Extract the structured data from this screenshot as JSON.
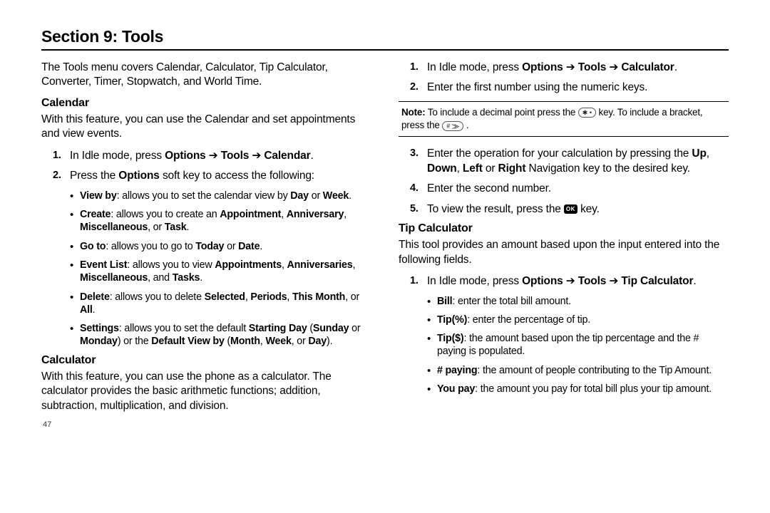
{
  "section_title": "Section 9: Tools",
  "page_number": "47",
  "left": {
    "intro": "The Tools menu covers Calendar, Calculator, Tip Calculator, Converter, Timer, Stopwatch, and World Time.",
    "calendar": {
      "heading": "Calendar",
      "desc": "With this feature, you can use the Calendar and set appointments and view events.",
      "step1_pre": "In Idle mode, press ",
      "step1_b1": "Options",
      "step1_arrow": " ➔ ",
      "step1_b2": "Tools",
      "step1_b3": "Calendar",
      "step1_post": ".",
      "step2_pre": "Press the ",
      "step2_b": "Options",
      "step2_post": " soft key to access the following:",
      "bullets": {
        "b1_label": "View by",
        "b1_mid": ": allows you to set the calendar view by ",
        "b1_bold1": "Day",
        "b1_or": " or ",
        "b1_bold2": "Week",
        "b2_label": "Create",
        "b2_mid": ": allows you to create an ",
        "b2_bold1": "Appointment",
        "b2_c1": ", ",
        "b2_bold2": "Anniversary",
        "b2_c2": ", ",
        "b2_bold3": "Miscellaneous",
        "b2_or": ", or ",
        "b2_bold4": "Task",
        "b3_label": "Go to",
        "b3_mid": ": allows you to go to ",
        "b3_bold1": "Today",
        "b3_or": " or ",
        "b3_bold2": "Date",
        "b4_label": "Event List",
        "b4_mid": ": allows you to view ",
        "b4_bold1": "Appointments",
        "b4_c1": ", ",
        "b4_bold2": "Anniversaries",
        "b4_c2": ", ",
        "b4_bold3": "Miscellaneous",
        "b4_and": ", and ",
        "b4_bold4": "Tasks",
        "b5_label": "Delete",
        "b5_mid": ": allows you to delete ",
        "b5_bold1": "Selected",
        "b5_c1": ", ",
        "b5_bold2": "Periods",
        "b5_c2": ", ",
        "b5_bold3": "This Month",
        "b5_or": ", or ",
        "b5_bold4": "All",
        "b6_label": "Settings",
        "b6_mid": ": allows you to set the default ",
        "b6_bold1": "Starting Day",
        "b6_p1": " (",
        "b6_bold2": "Sunday",
        "b6_or1": " or ",
        "b6_bold3": "Monday",
        "b6_p2": ") or the ",
        "b6_bold4": "Default View by",
        "b6_p3": " (",
        "b6_bold5": "Month",
        "b6_c1": ", ",
        "b6_bold6": "Week",
        "b6_or2": ", or ",
        "b6_bold7": "Day",
        "b6_p4": ")."
      }
    },
    "calculator": {
      "heading": "Calculator",
      "desc": "With this feature, you can use the phone as a calculator. The calculator provides the basic arithmetic functions; addition, subtraction, multiplication, and division."
    }
  },
  "right": {
    "step1_pre": "In Idle mode, press ",
    "step1_b1": "Options",
    "step1_arrow": " ➔ ",
    "step1_b2": "Tools",
    "step1_b3": "Calculator",
    "step1_post": ".",
    "step2": "Enter the first number using the numeric keys.",
    "note_label": "Note:",
    "note_t1": " To include a decimal point press the ",
    "note_icon1": "✱ •",
    "note_t2": " key. To include a bracket, press the ",
    "note_icon2": "# ⨠",
    "note_t3": " .",
    "step3_pre": "Enter the operation for your calculation by pressing the ",
    "step3_b1": "Up",
    "step3_c1": ", ",
    "step3_b2": "Down",
    "step3_c2": ", ",
    "step3_b3": "Left",
    "step3_or": " or ",
    "step3_b4": "Right",
    "step3_post": " Navigation key to the desired key.",
    "step4": "Enter the second number.",
    "step5_pre": "To view the result, press the ",
    "step5_icon": "OK",
    "step5_post": " key.",
    "tip": {
      "heading": "Tip Calculator",
      "desc": "This tool provides an amount based upon the input entered into the following fields.",
      "step1_pre": "In Idle mode, press ",
      "step1_b1": "Options",
      "step1_arrow": "  ➔  ",
      "step1_b2": "Tools",
      "step1_arrow2": "  ➔ ",
      "step1_b3": "Tip Calculator",
      "step1_post": ".",
      "b1_label": "Bill",
      "b1_text": ": enter the total bill amount.",
      "b2_label": "Tip(%)",
      "b2_text": ": enter the percentage of tip.",
      "b3_label": "Tip($)",
      "b3_text": ": the amount based upon the tip percentage and the # paying is populated.",
      "b4_label": "# paying",
      "b4_text": ": the amount of people contributing to the Tip Amount.",
      "b5_label": "You pay",
      "b5_text": ": the amount you pay for total bill plus your tip amount."
    }
  }
}
